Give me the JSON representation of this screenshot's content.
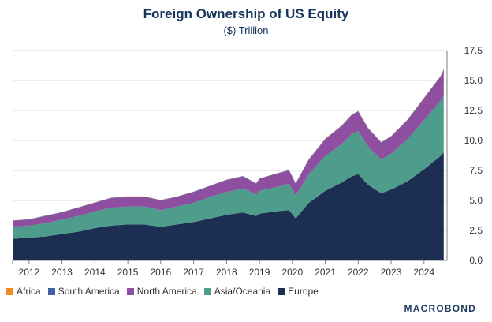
{
  "chart_data": {
    "type": "area",
    "stacked": true,
    "title": "Foreign Ownership of US Equity",
    "subtitle": "($) Trillion",
    "xlabel": "",
    "ylabel": "",
    "ylim": [
      0,
      17.5
    ],
    "y_axis_side": "right",
    "yticks": [
      "0.0",
      "2.5",
      "5.0",
      "7.5",
      "10.0",
      "12.5",
      "15.0",
      "17.5"
    ],
    "xticks": [
      "2012",
      "2013",
      "2014",
      "2015",
      "2016",
      "2017",
      "2018",
      "2019",
      "2020",
      "2021",
      "2022",
      "2023",
      "2024"
    ],
    "grid": "horizontal",
    "legend_position": "bottom-left",
    "x": [
      2011.5,
      2012.0,
      2012.5,
      2013.0,
      2013.5,
      2014.0,
      2014.5,
      2015.0,
      2015.5,
      2016.0,
      2016.5,
      2017.0,
      2017.5,
      2018.0,
      2018.5,
      2018.9,
      2019.0,
      2019.5,
      2019.9,
      2020.1,
      2020.5,
      2021.0,
      2021.5,
      2021.8,
      2022.0,
      2022.3,
      2022.7,
      2023.0,
      2023.5,
      2024.0,
      2024.5,
      2024.6
    ],
    "series": [
      {
        "name": "Europe",
        "color": "#1c2f52",
        "values": [
          1.8,
          1.9,
          2.0,
          2.2,
          2.4,
          2.7,
          2.9,
          3.0,
          3.0,
          2.8,
          3.0,
          3.2,
          3.5,
          3.8,
          4.0,
          3.7,
          3.9,
          4.1,
          4.2,
          3.5,
          4.8,
          5.8,
          6.5,
          7.0,
          7.2,
          6.3,
          5.6,
          5.9,
          6.6,
          7.6,
          8.7,
          9.0
        ]
      },
      {
        "name": "Asia/Oceania",
        "color": "#4e9c8c",
        "values": [
          1.0,
          1.0,
          1.1,
          1.2,
          1.3,
          1.4,
          1.5,
          1.5,
          1.5,
          1.4,
          1.5,
          1.6,
          1.8,
          1.9,
          2.0,
          1.8,
          1.9,
          2.0,
          2.2,
          1.9,
          2.4,
          2.9,
          3.2,
          3.5,
          3.6,
          3.2,
          2.8,
          3.0,
          3.5,
          4.1,
          4.6,
          4.8
        ]
      },
      {
        "name": "North America",
        "color": "#8e4fa0",
        "values": [
          0.5,
          0.5,
          0.6,
          0.6,
          0.7,
          0.7,
          0.8,
          0.8,
          0.8,
          0.8,
          0.8,
          0.9,
          0.9,
          1.0,
          1.0,
          0.9,
          1.0,
          1.1,
          1.1,
          1.0,
          1.2,
          1.4,
          1.5,
          1.6,
          1.6,
          1.5,
          1.4,
          1.4,
          1.6,
          1.8,
          2.0,
          2.1
        ]
      },
      {
        "name": "South America",
        "color": "#3e62a3",
        "values": [
          0.03,
          0.03,
          0.03,
          0.03,
          0.03,
          0.03,
          0.03,
          0.03,
          0.03,
          0.03,
          0.03,
          0.03,
          0.03,
          0.03,
          0.03,
          0.03,
          0.03,
          0.03,
          0.03,
          0.03,
          0.03,
          0.04,
          0.04,
          0.04,
          0.04,
          0.04,
          0.04,
          0.04,
          0.04,
          0.04,
          0.05,
          0.05
        ]
      },
      {
        "name": "Africa",
        "color": "#f08a2b",
        "values": [
          0.01,
          0.01,
          0.01,
          0.01,
          0.01,
          0.01,
          0.01,
          0.01,
          0.01,
          0.01,
          0.01,
          0.01,
          0.01,
          0.01,
          0.01,
          0.01,
          0.01,
          0.01,
          0.01,
          0.01,
          0.01,
          0.02,
          0.02,
          0.02,
          0.02,
          0.02,
          0.02,
          0.02,
          0.02,
          0.02,
          0.02,
          0.02
        ]
      }
    ],
    "legend": [
      "Africa",
      "South America",
      "North America",
      "Asia/Oceania",
      "Europe"
    ]
  },
  "source_logo": "MACROBOND"
}
